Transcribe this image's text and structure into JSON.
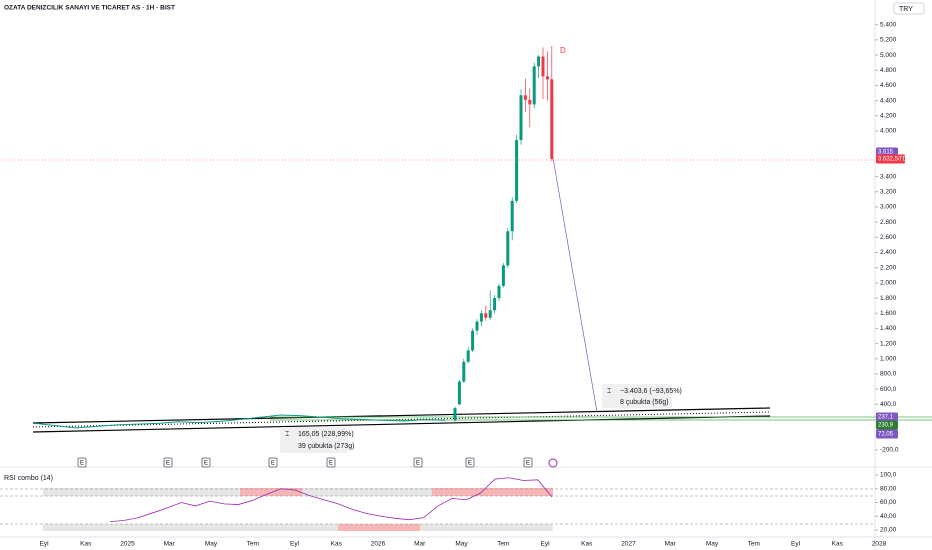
{
  "header": {
    "title": "OZATA DENIZCILIK SANAYI VE TICARET AS · 1H · BIST",
    "currency": "TRY"
  },
  "chart_data": {
    "type": "candlestick",
    "open": [
      190,
      400,
      700,
      960,
      1110,
      1370,
      1490,
      1600,
      1540,
      1640,
      1800,
      1960,
      2230,
      2680,
      3080,
      3880,
      4470,
      4410,
      4350,
      4850,
      4980,
      4720,
      4680
    ],
    "high": [
      370,
      720,
      1000,
      1150,
      1400,
      1520,
      1640,
      1700,
      1900,
      1840,
      1990,
      2260,
      2720,
      3130,
      3950,
      4550,
      4690,
      4560,
      4900,
      5000,
      5100,
      5050,
      5120
    ],
    "low": [
      170,
      390,
      680,
      940,
      1090,
      1320,
      1430,
      1500,
      1510,
      1600,
      1760,
      1940,
      2200,
      2560,
      3050,
      3820,
      4250,
      4050,
      4300,
      4700,
      4420,
      4400,
      3600
    ],
    "close": [
      350,
      700,
      960,
      1110,
      1370,
      1490,
      1600,
      1540,
      1640,
      1800,
      1960,
      2230,
      2680,
      3080,
      3880,
      4470,
      4410,
      4350,
      4850,
      4980,
      4720,
      4680,
      3632.5
    ],
    "pre_close": [
      150,
      120,
      90,
      110,
      130,
      140,
      150,
      170,
      160,
      175,
      200,
      230,
      260,
      250,
      230,
      210,
      200,
      190,
      180,
      200,
      190
    ],
    "up_color": "#089981",
    "down_color": "#f23645",
    "ylim": [
      -300,
      5600
    ],
    "yticks": [
      {
        "value": 5400,
        "label": "5.400"
      },
      {
        "value": 5200,
        "label": "5.200"
      },
      {
        "value": 5000,
        "label": "5.000"
      },
      {
        "value": 4800,
        "label": "4.800"
      },
      {
        "value": 4600,
        "label": "4.600"
      },
      {
        "value": 4400,
        "label": "4.400"
      },
      {
        "value": 4200,
        "label": "4.200"
      },
      {
        "value": 4000,
        "label": "4.000"
      },
      {
        "value": 3400,
        "label": "3.400"
      },
      {
        "value": 3200,
        "label": "3.200"
      },
      {
        "value": 3000,
        "label": "3.000"
      },
      {
        "value": 2800,
        "label": "2.800"
      },
      {
        "value": 2600,
        "label": "2.600"
      },
      {
        "value": 2400,
        "label": "2.400"
      },
      {
        "value": 2200,
        "label": "2.200"
      },
      {
        "value": 2000,
        "label": "2.000"
      },
      {
        "value": 1800,
        "label": "1.800"
      },
      {
        "value": 1600,
        "label": "1.600"
      },
      {
        "value": 1400,
        "label": "1.400"
      },
      {
        "value": 1200,
        "label": "1.200"
      },
      {
        "value": 1000,
        "label": "1.000"
      },
      {
        "value": 800,
        "label": "800,0"
      },
      {
        "value": 600,
        "label": "600,0"
      },
      {
        "value": 400,
        "label": "400,0"
      },
      {
        "value": -200,
        "label": "-200,0"
      }
    ],
    "time_labels": [
      "Eyl",
      "Kas",
      "2025",
      "Mar",
      "May",
      "Tem",
      "Eyl",
      "Kas",
      "2026",
      "Mar",
      "May",
      "Tem",
      "Eyl",
      "Kas",
      "2027",
      "Mar",
      "May",
      "Tem",
      "Eyl",
      "Kas",
      "2028"
    ],
    "badges": [
      "3.615",
      "OZATD",
      "3.632,5",
      "237,1",
      "230,9",
      "72,05"
    ],
    "measure_down": [
      "−3.403,6 (−93,65%)",
      "8 çubukta (56g)"
    ],
    "measure_up": [
      "165,05 (228,99%)",
      "39 çubukta (273g)"
    ],
    "event_markers": [
      "E",
      "E",
      "E",
      "E",
      "E",
      "E",
      "E",
      "E"
    ],
    "dividend_marker": "D"
  },
  "rsi": {
    "type": "line",
    "title": "RSI combo (14)",
    "color": "#9c27b0",
    "values": [
      32,
      34,
      38,
      45,
      52,
      60,
      55,
      62,
      58,
      57,
      63,
      72,
      80,
      78,
      70,
      64,
      58,
      50,
      44,
      40,
      37,
      35,
      38,
      55,
      66,
      64,
      74,
      94,
      96,
      92,
      93,
      68
    ],
    "ylim": [
      14,
      104
    ],
    "yticks": [
      {
        "value": 100,
        "label": "100,0"
      },
      {
        "value": 80,
        "label": "80,00"
      },
      {
        "value": 60,
        "label": "60,00"
      },
      {
        "value": 40,
        "label": "40,00"
      },
      {
        "value": 20,
        "label": "20,00"
      }
    ]
  }
}
